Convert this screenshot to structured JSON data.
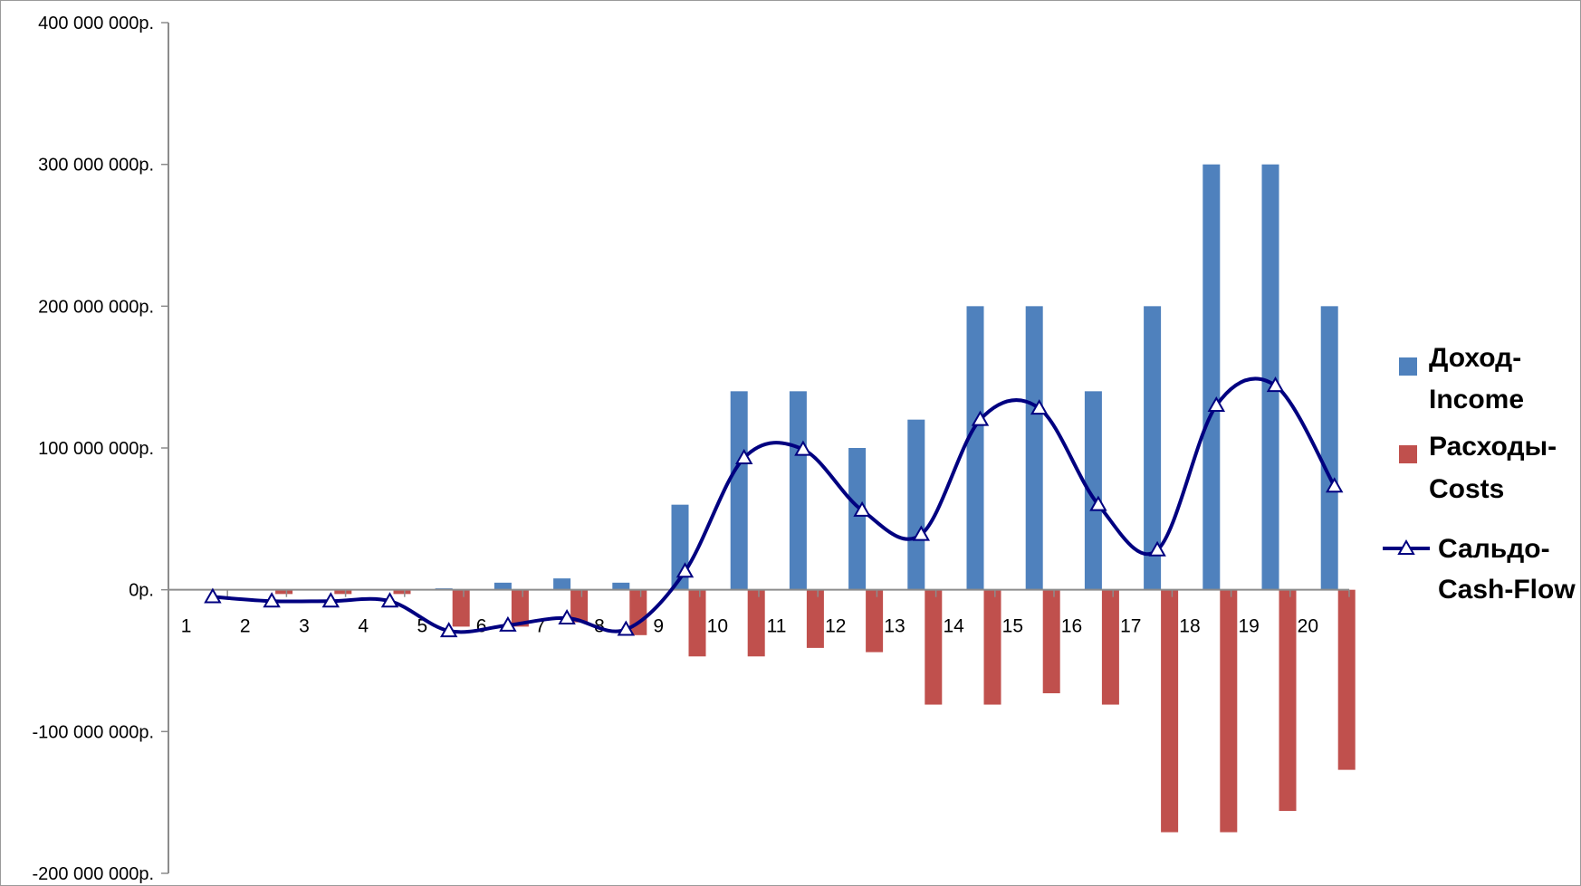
{
  "chart_data": {
    "type": "bar",
    "categories": [
      "1",
      "2",
      "3",
      "4",
      "5",
      "6",
      "7",
      "8",
      "9",
      "10",
      "11",
      "12",
      "13",
      "14",
      "15",
      "16",
      "17",
      "18",
      "19",
      "20"
    ],
    "series": [
      {
        "name": "Доход-Income",
        "kind": "bar",
        "color": "#4f81bd",
        "values": [
          0,
          0,
          0,
          0,
          1000000,
          5000000,
          8000000,
          5000000,
          60000000,
          140000000,
          140000000,
          100000000,
          120000000,
          200000000,
          200000000,
          140000000,
          200000000,
          300000000,
          300000000,
          200000000
        ]
      },
      {
        "name": "Расходы-Costs",
        "kind": "bar",
        "color": "#c0504d",
        "values": [
          0,
          -3000000,
          -3000000,
          -3000000,
          -26000000,
          -26000000,
          -23000000,
          -32000000,
          -47000000,
          -47000000,
          -41000000,
          -44000000,
          -81000000,
          -81000000,
          -73000000,
          -81000000,
          -171000000,
          -171000000,
          -156000000,
          -127000000
        ]
      },
      {
        "name": "Сальдо-Cash-Flow",
        "kind": "line",
        "color": "#000080",
        "marker": "triangle",
        "smooth": true,
        "values": [
          -5000000,
          -8000000,
          -8000000,
          -8000000,
          -29000000,
          -25000000,
          -20000000,
          -28000000,
          13000000,
          93000000,
          99000000,
          56000000,
          39000000,
          120000000,
          128000000,
          60000000,
          28000000,
          130000000,
          144000000,
          73000000
        ]
      }
    ],
    "ylim": [
      -200000000,
      400000000
    ],
    "yticks": [
      {
        "value": 400000000,
        "label": "400 000 000р."
      },
      {
        "value": 300000000,
        "label": "300 000 000р."
      },
      {
        "value": 200000000,
        "label": "200 000 000р."
      },
      {
        "value": 100000000,
        "label": "100 000 000р."
      },
      {
        "value": 0,
        "label": "0р."
      },
      {
        "value": -100000000,
        "label": "-100 000 000р."
      },
      {
        "value": -200000000,
        "label": "-200 000 000р."
      }
    ],
    "legend": {
      "position": "right",
      "entries": [
        {
          "lines": [
            "Доход-",
            "Income"
          ],
          "series": 0
        },
        {
          "lines": [
            "Расходы-",
            "Costs"
          ],
          "series": 1
        },
        {
          "lines": [
            "Сальдо-",
            "Cash-Flow"
          ],
          "series": 2
        }
      ]
    },
    "grid": false,
    "title": "",
    "xlabel": "",
    "ylabel": ""
  }
}
